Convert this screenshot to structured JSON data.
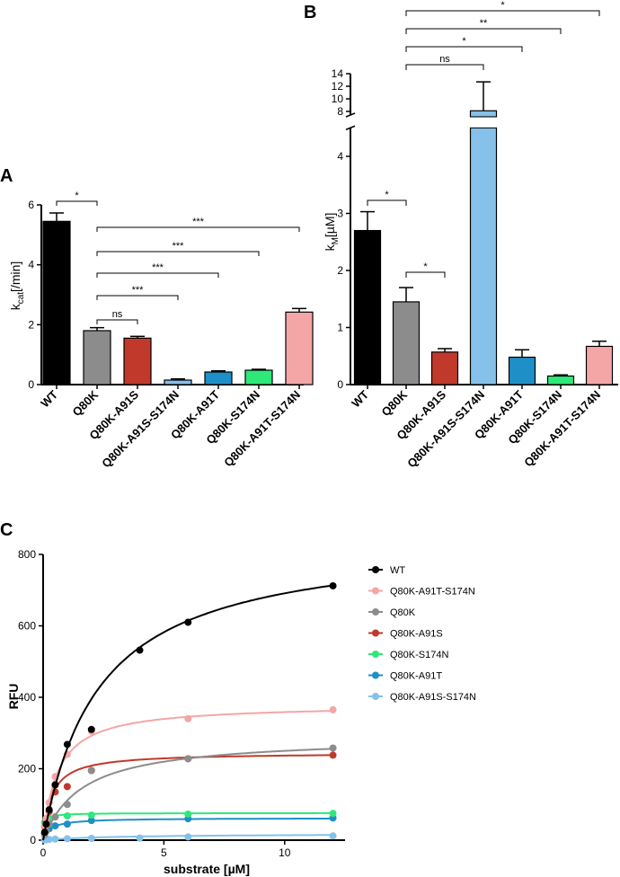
{
  "figure": {
    "panel_labels": [
      "A",
      "B",
      "C"
    ]
  },
  "colors": {
    "WT": "#000000",
    "Q80K": "#8c8c8c",
    "Q80K-A91S": "#c0392b",
    "Q80K-A91S-S174N": "#85c1e9",
    "Q80K-A91T": "#1f8fc8",
    "Q80K-S174N": "#2ee878",
    "Q80K-A91T-S174N": "#f4a6a6"
  },
  "chart_data": [
    {
      "panel": "A",
      "type": "bar",
      "ylabel": "k",
      "ylabel_sub": "cat",
      "ylabel_rest": "[/min]",
      "ylim": [
        0,
        6
      ],
      "yticks": [
        "0",
        "2",
        "4",
        "6"
      ],
      "categories": [
        "WT",
        "Q80K",
        "Q80K-A91S",
        "Q80K-A91S-S174N",
        "Q80K-A91T",
        "Q80K-S174N",
        "Q80K-A91T-S174N"
      ],
      "values": [
        5.45,
        1.8,
        1.55,
        0.15,
        0.42,
        0.48,
        2.42
      ],
      "errors": [
        0.28,
        0.1,
        0.06,
        0.04,
        0.04,
        0.03,
        0.12
      ],
      "comparisons": [
        {
          "from": 0,
          "to": 1,
          "label": "*"
        },
        {
          "from": 1,
          "to": 2,
          "label": "ns"
        },
        {
          "from": 1,
          "to": 3,
          "label": "***"
        },
        {
          "from": 1,
          "to": 4,
          "label": "***"
        },
        {
          "from": 1,
          "to": 5,
          "label": "***"
        },
        {
          "from": 1,
          "to": 6,
          "label": "***"
        }
      ]
    },
    {
      "panel": "B",
      "type": "bar",
      "ylabel": "k",
      "ylabel_sub": "M",
      "ylabel_rest": "[µM]",
      "broken_axis": true,
      "ylim_lower": [
        0,
        4.5
      ],
      "ylim_upper": [
        8,
        14
      ],
      "yticks_lower": [
        "0",
        "1",
        "2",
        "3",
        "4"
      ],
      "yticks_upper": [
        "8",
        "10",
        "12",
        "14"
      ],
      "categories": [
        "WT",
        "Q80K",
        "Q80K-A91S",
        "Q80K-A91S-S174N",
        "Q80K-A91T",
        "Q80K-S174N",
        "Q80K-A91T-S174N"
      ],
      "values": [
        2.7,
        1.45,
        0.57,
        8.1,
        0.48,
        0.15,
        0.67
      ],
      "errors": [
        0.33,
        0.25,
        0.06,
        4.6,
        0.13,
        0.02,
        0.09
      ],
      "comparisons": [
        {
          "from": 0,
          "to": 1,
          "label": "*"
        },
        {
          "from": 1,
          "to": 2,
          "label": "*"
        },
        {
          "from": 1,
          "to": 3,
          "label": "ns"
        },
        {
          "from": 1,
          "to": 4,
          "label": "*"
        },
        {
          "from": 1,
          "to": 5,
          "label": "**"
        },
        {
          "from": 1,
          "to": 6,
          "label": "*"
        }
      ]
    },
    {
      "panel": "C",
      "type": "scatter",
      "xlabel": "substrate [µM]",
      "ylabel": "RFU",
      "xlim": [
        0,
        12.5
      ],
      "ylim": [
        0,
        800
      ],
      "xticks": [
        "0",
        "5",
        "10"
      ],
      "yticks": [
        "0",
        "200",
        "400",
        "600",
        "800"
      ],
      "x": [
        0.0625,
        0.125,
        0.25,
        0.5,
        1,
        2,
        4,
        6,
        12
      ],
      "series": [
        {
          "name": "WT",
          "vmax": 850,
          "km": 2.3,
          "values": [
            22,
            45,
            85,
            155,
            268,
            310,
            532,
            610,
            712
          ]
        },
        {
          "name": "Q80K-A91T-S174N",
          "vmax": 380,
          "km": 0.6,
          "values": [
            40,
            60,
            105,
            178,
            240,
            305,
            null,
            340,
            365
          ]
        },
        {
          "name": "Q80K",
          "vmax": 290,
          "km": 1.6,
          "values": [
            15,
            25,
            45,
            65,
            100,
            195,
            null,
            228,
            258
          ]
        },
        {
          "name": "Q80K-A91S",
          "vmax": 245,
          "km": 0.35,
          "values": [
            38,
            55,
            80,
            135,
            150,
            195,
            null,
            228,
            238
          ]
        },
        {
          "name": "Q80K-S174N",
          "vmax": 76,
          "km": 0.06,
          "values": [
            50,
            60,
            62,
            65,
            68,
            70,
            null,
            73,
            75
          ]
        },
        {
          "name": "Q80K-A91T",
          "vmax": 62,
          "km": 0.3,
          "values": [
            18,
            25,
            32,
            40,
            45,
            55,
            null,
            60,
            62
          ]
        },
        {
          "name": "Q80K-A91S-S174N",
          "vmax": 18,
          "km": 3,
          "values": [
            1,
            1,
            2,
            3,
            4,
            5,
            6,
            9,
            12
          ]
        }
      ]
    }
  ]
}
